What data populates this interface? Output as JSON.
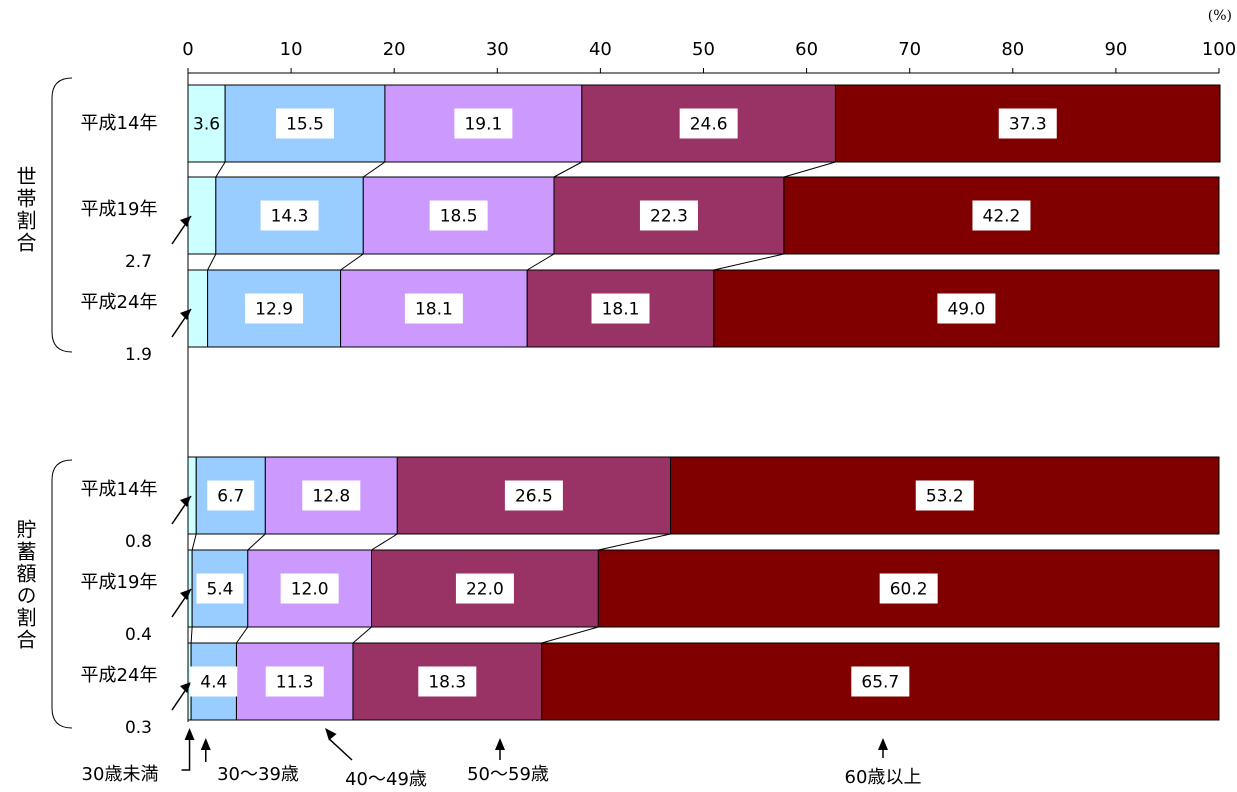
{
  "chart_data": {
    "type": "bar",
    "orientation": "horizontal",
    "stacked": "100%",
    "unit": "(%)",
    "xlim": [
      0,
      100
    ],
    "ticks": [
      0,
      10,
      20,
      30,
      40,
      50,
      60,
      70,
      80,
      90,
      100
    ],
    "grid": false,
    "legend_placement": "bottom",
    "series": [
      {
        "name": "30歳未満",
        "color": "#ccffff"
      },
      {
        "name": "30～39歳",
        "color": "#99ccff"
      },
      {
        "name": "40～49歳",
        "color": "#cc99ff"
      },
      {
        "name": "50～59歳",
        "color": "#993366"
      },
      {
        "name": "60歳以上",
        "color": "#800000"
      }
    ],
    "groups": [
      {
        "name": "世帯割合",
        "rows": [
          {
            "label": "平成14年",
            "values": [
              3.6,
              15.5,
              19.1,
              24.6,
              37.3
            ]
          },
          {
            "label": "平成19年",
            "values": [
              2.7,
              14.3,
              18.5,
              22.3,
              42.2
            ]
          },
          {
            "label": "平成24年",
            "values": [
              1.9,
              12.9,
              18.1,
              18.1,
              49.0
            ]
          }
        ]
      },
      {
        "name": "貯蓄額の割合",
        "rows": [
          {
            "label": "平成14年",
            "values": [
              0.8,
              6.7,
              12.8,
              26.5,
              53.2
            ]
          },
          {
            "label": "平成19年",
            "values": [
              0.4,
              5.4,
              12.0,
              22.0,
              60.2
            ]
          },
          {
            "label": "平成24年",
            "values": [
              0.3,
              4.4,
              11.3,
              18.3,
              65.7
            ]
          }
        ]
      }
    ]
  }
}
